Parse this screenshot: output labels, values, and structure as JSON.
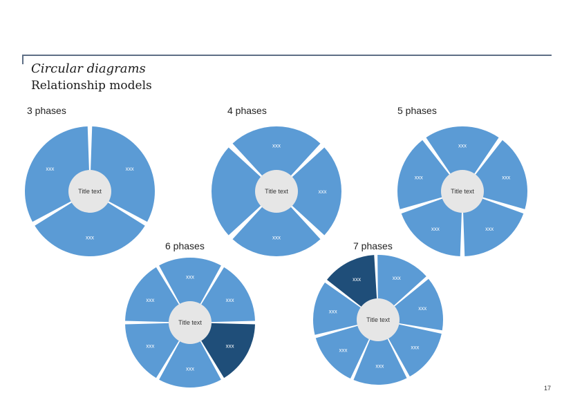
{
  "header": {
    "title": "Circular diagrams",
    "subtitle": "Relationship models"
  },
  "colors": {
    "segment": "#5b9bd5",
    "segment_highlight": "#1f4e79",
    "center": "#e6e6e6",
    "center_text": "#333333",
    "segment_text": "#ffffff"
  },
  "diagrams": [
    {
      "id": "three",
      "phase_label": "3 phases",
      "center_text": "Title text",
      "segments": [
        {
          "label": "xxx",
          "highlight": false
        },
        {
          "label": "xxx",
          "highlight": false
        },
        {
          "label": "xxx",
          "highlight": false
        }
      ]
    },
    {
      "id": "four",
      "phase_label": "4 phases",
      "center_text": "Title text",
      "segments": [
        {
          "label": "xxx",
          "highlight": false
        },
        {
          "label": "xxx",
          "highlight": false
        },
        {
          "label": "xxx",
          "highlight": false
        },
        {
          "label": "",
          "highlight": false
        }
      ]
    },
    {
      "id": "five",
      "phase_label": "5 phases",
      "center_text": "Title text",
      "segments": [
        {
          "label": "xxx",
          "highlight": false
        },
        {
          "label": "xxx",
          "highlight": false
        },
        {
          "label": "xxx",
          "highlight": false
        },
        {
          "label": "xxx",
          "highlight": false
        },
        {
          "label": "xxx",
          "highlight": false
        }
      ]
    },
    {
      "id": "six",
      "phase_label": "6 phases",
      "center_text": "Title text",
      "segments": [
        {
          "label": "xxx",
          "highlight": false
        },
        {
          "label": "xxx",
          "highlight": false
        },
        {
          "label": "xxx",
          "highlight": true
        },
        {
          "label": "xxx",
          "highlight": false
        },
        {
          "label": "xxx",
          "highlight": false
        },
        {
          "label": "xxx",
          "highlight": false
        }
      ]
    },
    {
      "id": "seven",
      "phase_label": "7 phases",
      "center_text": "Title text",
      "segments": [
        {
          "label": "xxx",
          "highlight": false
        },
        {
          "label": "xxx",
          "highlight": false
        },
        {
          "label": "xxx",
          "highlight": false
        },
        {
          "label": "xxx",
          "highlight": false
        },
        {
          "label": "xxx",
          "highlight": false
        },
        {
          "label": "xxx",
          "highlight": false
        },
        {
          "label": "xxx",
          "highlight": true
        }
      ]
    }
  ],
  "page_number": "17"
}
